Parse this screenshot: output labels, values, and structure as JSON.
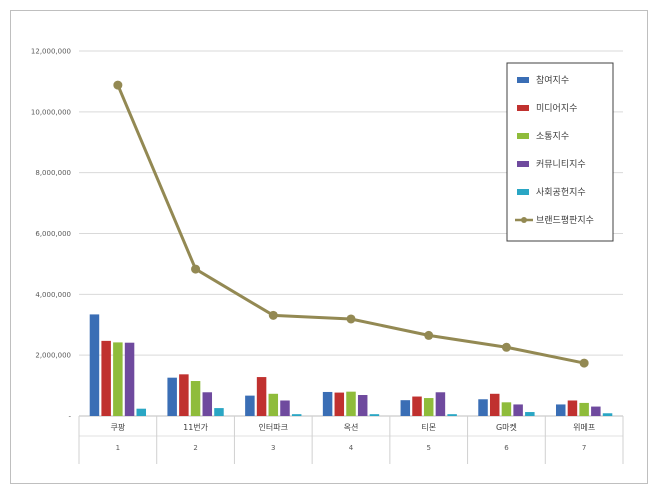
{
  "chart_data": {
    "type": "bar",
    "categories": [
      "쿠팡",
      "11번가",
      "인터파크",
      "옥션",
      "티몬",
      "G마켓",
      "위메프"
    ],
    "ranks": [
      "1",
      "2",
      "3",
      "4",
      "5",
      "6",
      "7"
    ],
    "y_ticks": [
      "-",
      "2,000,000",
      "4,000,000",
      "6,000,000",
      "8,000,000",
      "10,000,000",
      "12,000,000"
    ],
    "ylim": [
      0,
      12000000
    ],
    "grid": true,
    "legend_position": "top-right",
    "series": [
      {
        "name": "참여지수",
        "type": "bar",
        "color": "#3a6eb5",
        "values": [
          3340000,
          1260000,
          670000,
          790000,
          520000,
          550000,
          380000
        ]
      },
      {
        "name": "미디어지수",
        "type": "bar",
        "color": "#c0312f",
        "values": [
          2470000,
          1370000,
          1280000,
          770000,
          640000,
          730000,
          510000
        ]
      },
      {
        "name": "소통지수",
        "type": "bar",
        "color": "#8fbc3b",
        "values": [
          2420000,
          1150000,
          730000,
          800000,
          590000,
          450000,
          430000
        ]
      },
      {
        "name": "커뮤니티지수",
        "type": "bar",
        "color": "#6f4a9e",
        "values": [
          2410000,
          780000,
          510000,
          690000,
          780000,
          380000,
          310000
        ]
      },
      {
        "name": "사회공헌지수",
        "type": "bar",
        "color": "#2aa6c4",
        "values": [
          240000,
          260000,
          60000,
          60000,
          60000,
          130000,
          90000
        ]
      },
      {
        "name": "브랜드평판지수",
        "type": "line",
        "color": "#938953",
        "values": [
          10880000,
          4830000,
          3310000,
          3190000,
          2650000,
          2260000,
          1740000
        ]
      }
    ]
  }
}
